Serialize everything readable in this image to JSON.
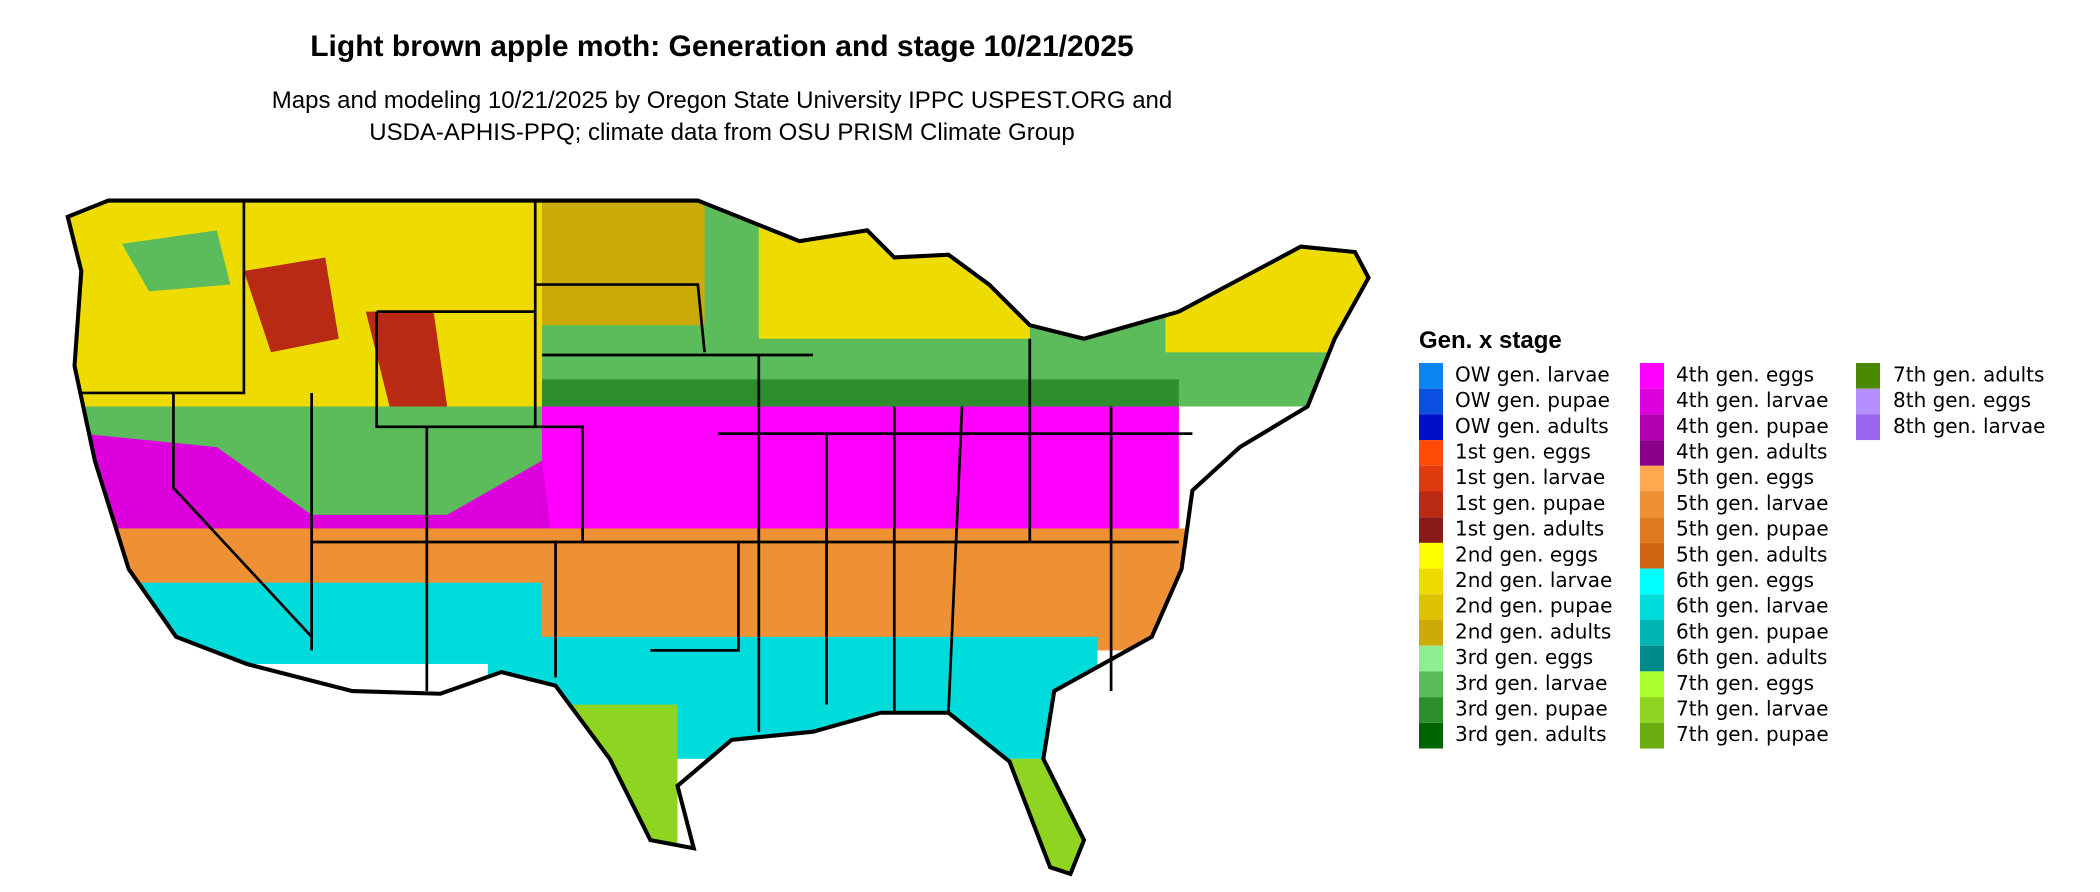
{
  "header": {
    "title": "Light brown apple moth: Generation and stage 10/21/2025",
    "subtitle": [
      "Maps and modeling 10/21/2025 by Oregon State University IPPC USPEST.ORG and",
      "USDA-APHIS-PPQ; climate data from OSU PRISM Climate Group"
    ]
  },
  "legend": {
    "title": "Gen. x stage",
    "items": [
      {
        "label": "OW gen. larvae",
        "color": "#0a84f0"
      },
      {
        "label": "OW gen. pupae",
        "color": "#0a4fe0"
      },
      {
        "label": "OW gen. adults",
        "color": "#0010c8"
      },
      {
        "label": "1st gen. eggs",
        "color": "#ff4a08"
      },
      {
        "label": "1st gen. larvae",
        "color": "#e03a10"
      },
      {
        "label": "1st gen. pupae",
        "color": "#b82a14"
      },
      {
        "label": "1st gen. adults",
        "color": "#8a1a18"
      },
      {
        "label": "2nd gen. eggs",
        "color": "#ffff00"
      },
      {
        "label": "2nd gen. larvae",
        "color": "#eedc00"
      },
      {
        "label": "2nd gen. pupae",
        "color": "#dcc200"
      },
      {
        "label": "2nd gen. adults",
        "color": "#ccaa08"
      },
      {
        "label": "3rd gen. eggs",
        "color": "#90ee90"
      },
      {
        "label": "3rd gen. larvae",
        "color": "#5cbc5c"
      },
      {
        "label": "3rd gen. pupae",
        "color": "#2e8e2e"
      },
      {
        "label": "3rd gen. adults",
        "color": "#006400"
      },
      {
        "label": "4th gen. eggs",
        "color": "#ff00ff"
      },
      {
        "label": "4th gen. larvae",
        "color": "#dc00dc"
      },
      {
        "label": "4th gen. pupae",
        "color": "#b000b0"
      },
      {
        "label": "4th gen. adults",
        "color": "#8b008b"
      },
      {
        "label": "5th gen. eggs",
        "color": "#ffa850"
      },
      {
        "label": "5th gen. larvae",
        "color": "#ee9034"
      },
      {
        "label": "5th gen. pupae",
        "color": "#e07a20"
      },
      {
        "label": "5th gen. adults",
        "color": "#d06410"
      },
      {
        "label": "6th gen. eggs",
        "color": "#00ffff"
      },
      {
        "label": "6th gen. larvae",
        "color": "#00dcdc"
      },
      {
        "label": "6th gen. pupae",
        "color": "#00b4b4"
      },
      {
        "label": "6th gen. adults",
        "color": "#008b8b"
      },
      {
        "label": "7th gen. eggs",
        "color": "#adff2f"
      },
      {
        "label": "7th gen. larvae",
        "color": "#8ed420"
      },
      {
        "label": "7th gen. pupae",
        "color": "#6aae12"
      },
      {
        "label": "7th gen. adults",
        "color": "#4a8a00"
      },
      {
        "label": "8th gen. eggs",
        "color": "#b490ff"
      },
      {
        "label": "8th gen. larvae",
        "color": "#9a66ee"
      }
    ]
  }
}
